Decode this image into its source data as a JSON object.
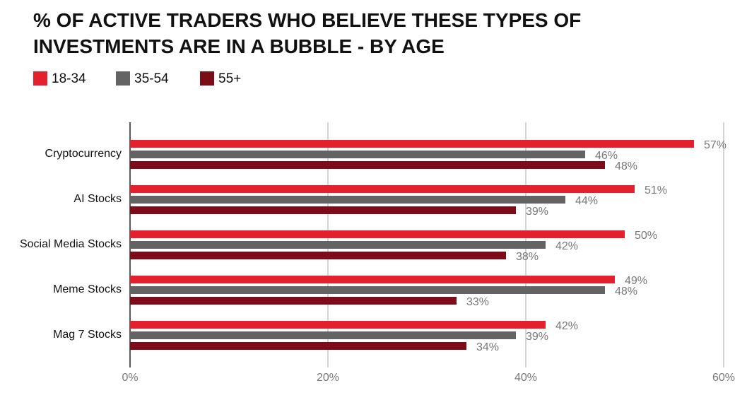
{
  "chart_data": {
    "type": "barh",
    "title": "% OF ACTIVE TRADERS WHO BELIEVE THESE TYPES OF INVESTMENTS ARE IN A BUBBLE - BY AGE",
    "categories": [
      "Cryptocurrency",
      "AI Stocks",
      "Social Media Stocks",
      "Meme Stocks",
      "Mag 7 Stocks"
    ],
    "series": [
      {
        "name": "18-34",
        "color": "#e3202b",
        "values": [
          57,
          51,
          50,
          49,
          42
        ],
        "value_labels": [
          "57%",
          "51%",
          "50%",
          "49%",
          "42%"
        ]
      },
      {
        "name": "35-54",
        "color": "#636363",
        "values": [
          46,
          44,
          42,
          48,
          39
        ],
        "value_labels": [
          "46%",
          "44%",
          "42%",
          "48%",
          "39%"
        ]
      },
      {
        "name": "55+",
        "color": "#7a0d17",
        "values": [
          48,
          39,
          38,
          33,
          34
        ],
        "value_labels": [
          "48%",
          "39%",
          "38%",
          "33%",
          "34%"
        ]
      }
    ],
    "xlim": [
      0,
      60
    ],
    "xticks": [
      {
        "value": 0,
        "label": "0%"
      },
      {
        "value": 20,
        "label": "20%"
      },
      {
        "value": 40,
        "label": "40%"
      },
      {
        "value": 60,
        "label": "60%"
      }
    ],
    "grid": true,
    "legend": "top-left"
  }
}
